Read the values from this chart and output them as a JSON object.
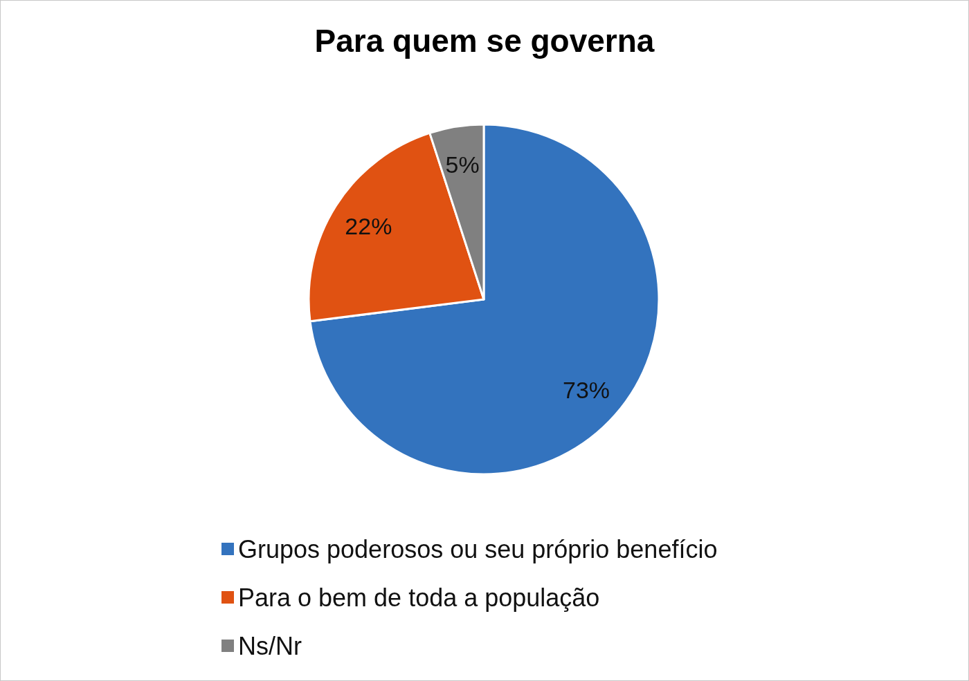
{
  "chart_data": {
    "type": "pie",
    "title": "Para quem se governa",
    "categories": [
      "Grupos poderosos ou seu próprio benefício",
      "Para o bem de toda a população",
      "Ns/Nr"
    ],
    "values": [
      73,
      22,
      5
    ],
    "colors": [
      "#3373be",
      "#e05212",
      "#808080"
    ],
    "value_labels": [
      "73%",
      "22%",
      "5%"
    ],
    "legend": "bottom"
  }
}
